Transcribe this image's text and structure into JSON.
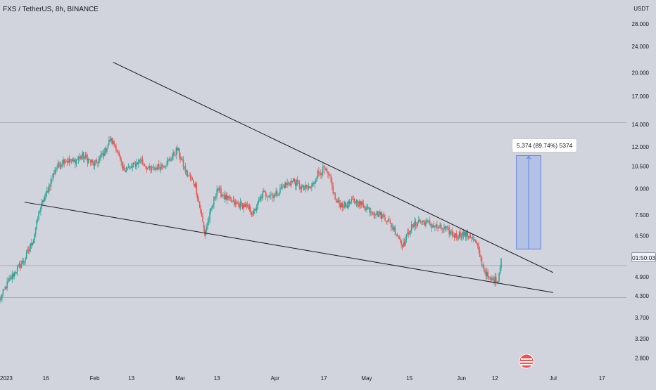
{
  "header": {
    "title": "FXS / TetherUS, 8h, BINANCE"
  },
  "price_axis": {
    "currency": "USDT",
    "last_price_label": "01:50:03"
  },
  "measure": {
    "label": "5.374 (89.74%) 5374"
  },
  "colors": {
    "up": "#26a69a",
    "down": "#ef5350",
    "trendline": "#131722",
    "measure_fill": "#aebde6",
    "measure_border": "#4a6fd9",
    "background": "#d1d4dc"
  },
  "chart_data": {
    "type": "candlestick",
    "scale": "log",
    "ylim": [
      2.6,
      33.0
    ],
    "y_ticks": [
      "28.000",
      "24.000",
      "20.000",
      "17.000",
      "14.000",
      "12.000",
      "10.500",
      "9.000",
      "7.500",
      "6.500",
      "4.900",
      "4.300",
      "3.700",
      "3.200",
      "2.800"
    ],
    "y_tick_values": [
      28.0,
      24.0,
      20.0,
      17.0,
      14.0,
      12.0,
      10.5,
      9.0,
      7.5,
      6.5,
      4.9,
      4.3,
      3.7,
      3.2,
      2.8
    ],
    "x_ticks": [
      "2023",
      "16",
      "Feb",
      "13",
      "Mar",
      "13",
      "Apr",
      "17",
      "May",
      "15",
      "Jun",
      "12",
      "Jul",
      "17"
    ],
    "x_tick_dates": [
      "2023-01-01",
      "2023-01-16",
      "2023-02-01",
      "2023-02-13",
      "2023-03-01",
      "2023-03-13",
      "2023-04-01",
      "2023-04-17",
      "2023-05-01",
      "2023-05-15",
      "2023-06-01",
      "2023-06-12",
      "2023-07-01",
      "2023-07-17"
    ],
    "horizontal_lines": [
      14.2,
      5.3,
      4.25
    ],
    "price_path": [
      [
        "2023-01-01",
        4.2
      ],
      [
        "2023-01-03",
        4.6
      ],
      [
        "2023-01-06",
        5.1
      ],
      [
        "2023-01-09",
        5.5
      ],
      [
        "2023-01-12",
        6.4
      ],
      [
        "2023-01-14",
        7.8
      ],
      [
        "2023-01-16",
        8.6
      ],
      [
        "2023-01-19",
        10.3
      ],
      [
        "2023-01-22",
        11.0
      ],
      [
        "2023-01-25",
        10.8
      ],
      [
        "2023-01-28",
        11.3
      ],
      [
        "2023-02-01",
        10.6
      ],
      [
        "2023-02-04",
        11.5
      ],
      [
        "2023-02-06",
        12.6
      ],
      [
        "2023-02-08",
        12.0
      ],
      [
        "2023-02-10",
        10.3
      ],
      [
        "2023-02-13",
        10.4
      ],
      [
        "2023-02-16",
        11.0
      ],
      [
        "2023-02-19",
        10.2
      ],
      [
        "2023-02-22",
        10.5
      ],
      [
        "2023-02-25",
        10.8
      ],
      [
        "2023-02-28",
        11.8
      ],
      [
        "2023-03-03",
        10.0
      ],
      [
        "2023-03-06",
        9.2
      ],
      [
        "2023-03-09",
        6.6
      ],
      [
        "2023-03-11",
        7.7
      ],
      [
        "2023-03-13",
        9.0
      ],
      [
        "2023-03-16",
        8.4
      ],
      [
        "2023-03-19",
        8.1
      ],
      [
        "2023-03-22",
        8.0
      ],
      [
        "2023-03-25",
        7.6
      ],
      [
        "2023-03-28",
        8.7
      ],
      [
        "2023-04-01",
        8.6
      ],
      [
        "2023-04-04",
        9.2
      ],
      [
        "2023-04-07",
        9.5
      ],
      [
        "2023-04-10",
        9.0
      ],
      [
        "2023-04-13",
        9.1
      ],
      [
        "2023-04-15",
        10.0
      ],
      [
        "2023-04-17",
        10.3
      ],
      [
        "2023-04-19",
        9.6
      ],
      [
        "2023-04-21",
        8.2
      ],
      [
        "2023-04-24",
        8.0
      ],
      [
        "2023-04-27",
        8.3
      ],
      [
        "2023-05-01",
        7.9
      ],
      [
        "2023-05-04",
        7.6
      ],
      [
        "2023-05-07",
        7.4
      ],
      [
        "2023-05-10",
        6.8
      ],
      [
        "2023-05-13",
        6.1
      ],
      [
        "2023-05-15",
        6.8
      ],
      [
        "2023-05-18",
        7.2
      ],
      [
        "2023-05-21",
        7.1
      ],
      [
        "2023-05-24",
        6.9
      ],
      [
        "2023-05-27",
        6.8
      ],
      [
        "2023-05-30",
        6.5
      ],
      [
        "2023-06-01",
        6.6
      ],
      [
        "2023-06-04",
        6.5
      ],
      [
        "2023-06-06",
        6.1
      ],
      [
        "2023-06-08",
        5.3
      ],
      [
        "2023-06-10",
        4.8
      ],
      [
        "2023-06-13",
        4.8
      ],
      [
        "2023-06-14",
        5.6
      ]
    ],
    "trendlines": [
      {
        "from": [
          "2023-02-07",
          21.5
        ],
        "to": [
          "2023-07-01",
          5.05
        ]
      },
      {
        "from": [
          "2023-01-09",
          8.2
        ],
        "to": [
          "2023-07-01",
          4.4
        ]
      }
    ],
    "measure": {
      "from": [
        "2023-06-19",
        5.94
      ],
      "to": [
        "2023-06-27",
        11.3
      ]
    }
  }
}
